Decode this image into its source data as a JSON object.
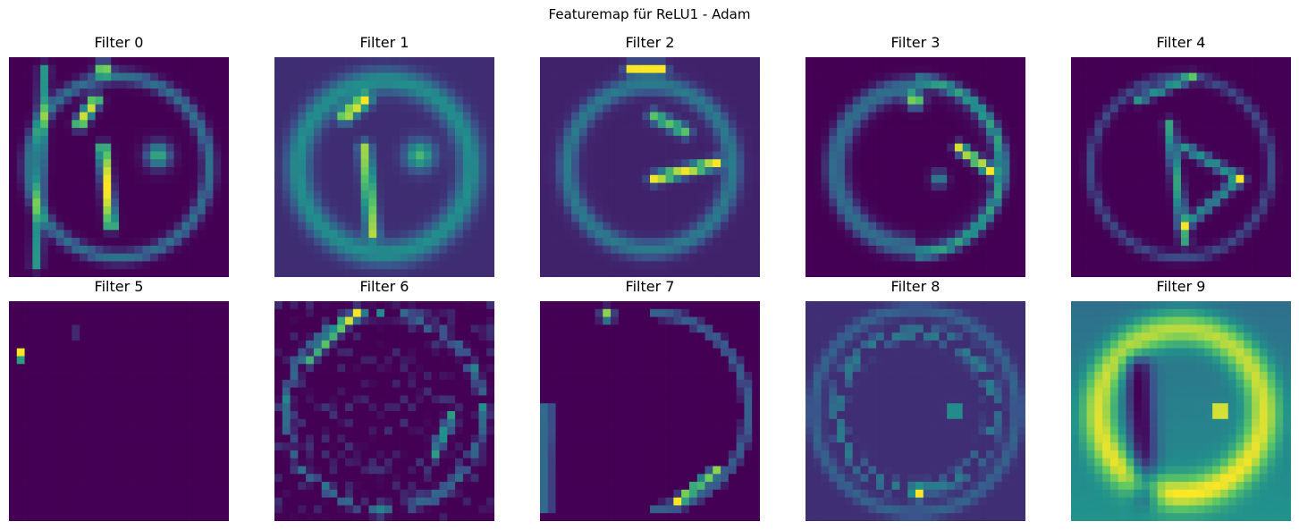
{
  "figure": {
    "title": "Featuremap für ReLU1 - Adam"
  },
  "chart_data": {
    "type": "heatmap",
    "colormap": "viridis",
    "colormap_stops": [
      "#440154",
      "#3b528b",
      "#21918c",
      "#5ec962",
      "#fde725"
    ],
    "grid_size": [
      28,
      28
    ],
    "axes_visible": false,
    "panels": [
      {
        "title": "Filter 0"
      },
      {
        "title": "Filter 1"
      },
      {
        "title": "Filter 2"
      },
      {
        "title": "Filter 3"
      },
      {
        "title": "Filter 4"
      },
      {
        "title": "Filter 5"
      },
      {
        "title": "Filter 6"
      },
      {
        "title": "Filter 7"
      },
      {
        "title": "Filter 8"
      },
      {
        "title": "Filter 9"
      }
    ]
  }
}
